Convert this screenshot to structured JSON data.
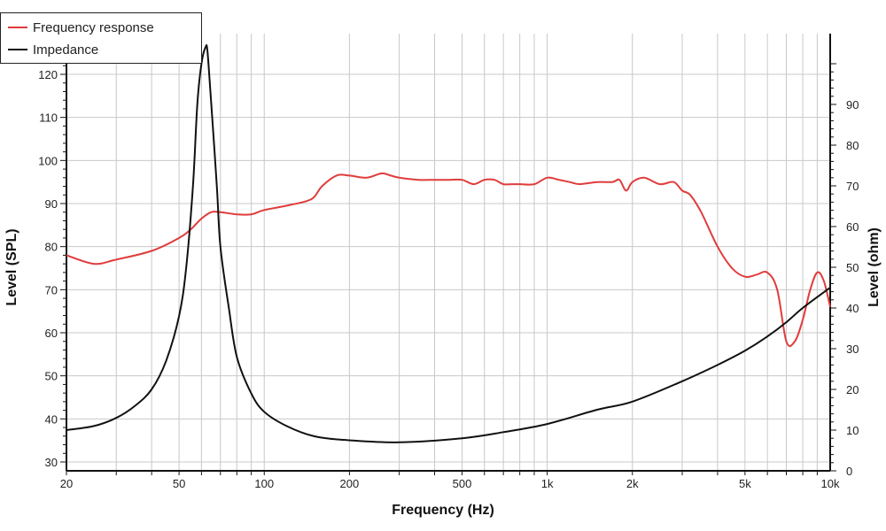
{
  "chart_data": {
    "type": "line",
    "xlabel": "Frequency (Hz)",
    "ylabel": "Level (SPL)",
    "y2label": "Level (ohm)",
    "x_scale": "log",
    "xlim": [
      20,
      10000
    ],
    "ylim": [
      30,
      125
    ],
    "y2lim": [
      0,
      100
    ],
    "x_tick_values": [
      20,
      50,
      100,
      200,
      500,
      1000,
      2000,
      5000,
      10000
    ],
    "x_tick_labels": [
      "20",
      "50",
      "100",
      "200",
      "500",
      "1k",
      "2k",
      "5k",
      "10k"
    ],
    "y_ticks": [
      30,
      40,
      50,
      60,
      70,
      80,
      90,
      100,
      110,
      120
    ],
    "y2_ticks": [
      0,
      10,
      20,
      30,
      40,
      50,
      60,
      70,
      80,
      90
    ],
    "grid": true,
    "legend_position": "top-left",
    "series": [
      {
        "name": "Frequency response",
        "axis": "left",
        "color": "#e03c3c",
        "x": [
          20,
          25,
          30,
          40,
          50,
          55,
          60,
          65,
          70,
          80,
          90,
          100,
          120,
          140,
          150,
          160,
          180,
          200,
          230,
          260,
          280,
          300,
          350,
          400,
          450,
          500,
          550,
          600,
          650,
          700,
          750,
          800,
          900,
          1000,
          1100,
          1200,
          1300,
          1500,
          1700,
          1800,
          1900,
          2000,
          2200,
          2500,
          2800,
          3000,
          3200,
          3500,
          4000,
          4500,
          5000,
          5500,
          6000,
          6500,
          7000,
          7500,
          8000,
          8500,
          9000,
          9500,
          10000
        ],
        "y": [
          78,
          76,
          77,
          79,
          82,
          84,
          86.5,
          88,
          88,
          87.5,
          87.5,
          88.5,
          89.5,
          90.5,
          91.5,
          94,
          96.5,
          96.5,
          96,
          97,
          96.5,
          96,
          95.5,
          95.5,
          95.5,
          95.5,
          94.5,
          95.5,
          95.5,
          94.5,
          94.5,
          94.5,
          94.5,
          96,
          95.5,
          95,
          94.5,
          95,
          95,
          95.5,
          93,
          95,
          96,
          94.5,
          95,
          93,
          92,
          88,
          80,
          75,
          73,
          73.5,
          74,
          70,
          58,
          58,
          63,
          70,
          74,
          72,
          66
        ]
      },
      {
        "name": "Impedance",
        "axis": "right",
        "color": "#111111",
        "x": [
          20,
          25,
          30,
          35,
          40,
          45,
          50,
          53,
          56,
          58,
          60,
          62,
          63,
          65,
          68,
          70,
          75,
          80,
          90,
          100,
          120,
          150,
          200,
          300,
          500,
          700,
          1000,
          1500,
          2000,
          3000,
          4000,
          5000,
          6000,
          7000,
          8000,
          10000
        ],
        "y": [
          10,
          11,
          13,
          16,
          20,
          27,
          38,
          50,
          70,
          90,
          100,
          104,
          103,
          90,
          70,
          55,
          40,
          28,
          19,
          14.5,
          11,
          8.5,
          7.5,
          7,
          8,
          9.5,
          11.5,
          15,
          17,
          22,
          26,
          29.5,
          33,
          36.5,
          40,
          45
        ]
      }
    ]
  },
  "legend": {
    "items": [
      {
        "label": "Frequency response",
        "color": "#e03c3c"
      },
      {
        "label": "Impedance",
        "color": "#111111"
      }
    ]
  }
}
